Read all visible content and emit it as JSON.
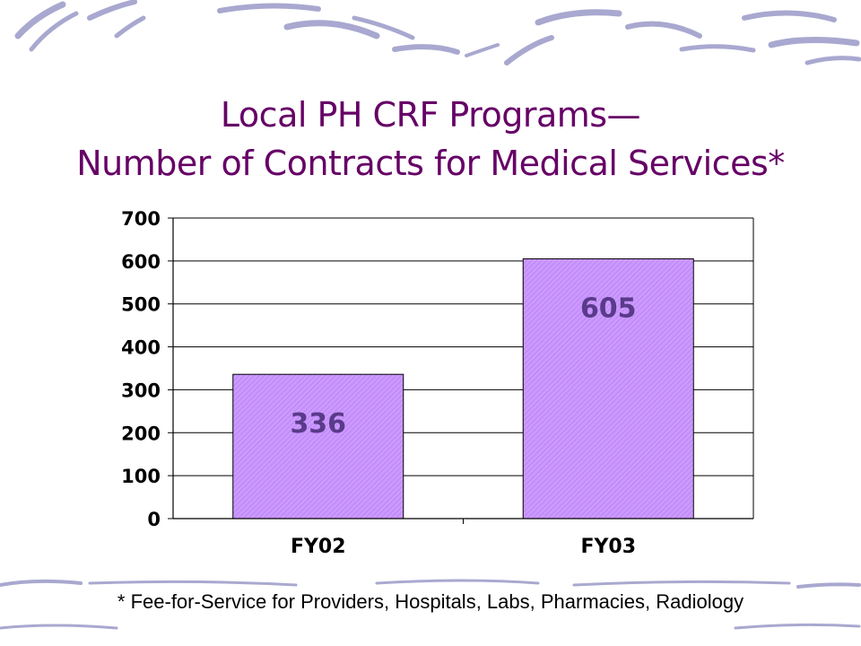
{
  "slide": {
    "title_line1": "Local PH CRF Programs—",
    "title_line2": "Number of Contracts for Medical Services*",
    "footnote": "* Fee-for-Service for Providers, Hospitals, Labs, Pharmacies, Radiology"
  },
  "colors": {
    "title": "#660066",
    "bar_fill": "#cc99ff",
    "bar_hatch": "#b380f0",
    "bar_label": "#5a3a8a",
    "swoosh": "#9a9ac8"
  },
  "chart_data": {
    "type": "bar",
    "categories": [
      "FY02",
      "FY03"
    ],
    "values": [
      336,
      605
    ],
    "data_labels": [
      "336",
      "605"
    ],
    "title": "",
    "xlabel": "",
    "ylabel": "",
    "ylim": [
      0,
      700
    ],
    "yticks": [
      0,
      100,
      200,
      300,
      400,
      500,
      600,
      700
    ],
    "grid": true,
    "legend": "none"
  }
}
